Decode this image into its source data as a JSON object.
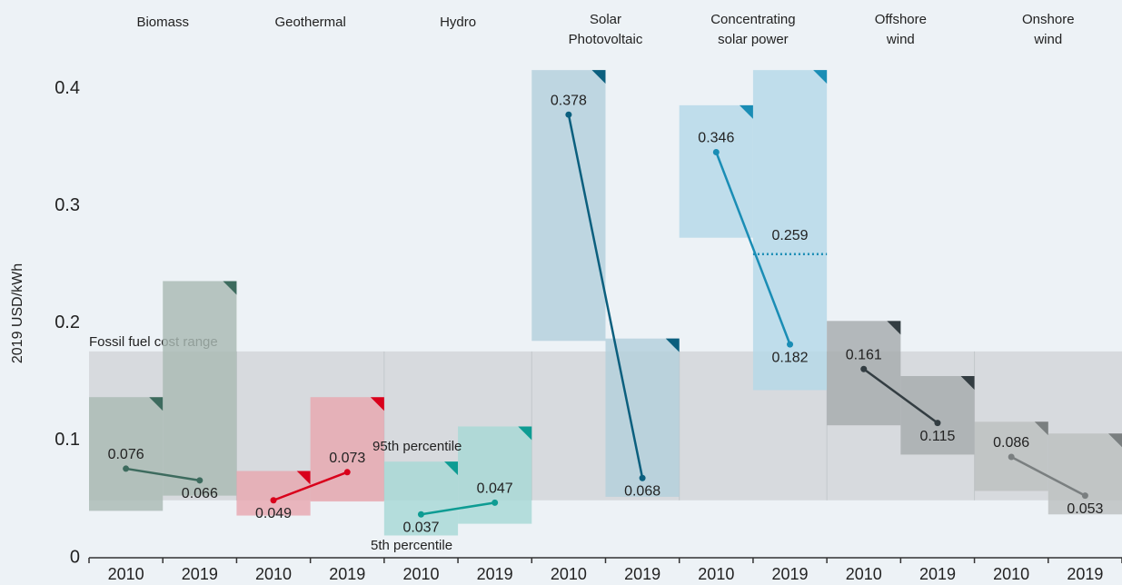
{
  "chart_data": {
    "type": "range",
    "y_label": "2019 USD/kWh",
    "categories": [
      "2010",
      "2019"
    ],
    "ylim": [
      0,
      0.42
    ],
    "yticks": [
      0,
      0.1,
      0.2,
      0.3,
      0.4
    ],
    "fossil_range": {
      "label": "Fossil fuel cost range",
      "low": 0.049,
      "high": 0.176,
      "color": "#d2d6d9"
    },
    "series": [
      {
        "name": [
          "Biomass"
        ],
        "color": "#3d6b5e",
        "box_color": "#a9bab3",
        "low": [
          0.04,
          0.053
        ],
        "high": [
          0.137,
          0.236
        ],
        "values": [
          0.076,
          0.066
        ]
      },
      {
        "name": [
          "Geothermal"
        ],
        "color": "#d9001b",
        "box_color": "#e8a7b0",
        "low": [
          0.036,
          0.048
        ],
        "high": [
          0.074,
          0.137
        ],
        "values": [
          0.049,
          0.073
        ]
      },
      {
        "name": [
          "Hydro"
        ],
        "color": "#0e9c93",
        "box_color": "#a7d8d5",
        "low": [
          0.019,
          0.029
        ],
        "high": [
          0.082,
          0.112
        ],
        "values": [
          0.037,
          0.047
        ]
      },
      {
        "name": [
          "Solar",
          "Photovoltaic"
        ],
        "color": "#0b5f7e",
        "box_color": "#b3cfdc",
        "low": [
          0.185,
          0.052
        ],
        "high": [
          0.416,
          0.187
        ],
        "values": [
          0.378,
          0.068
        ]
      },
      {
        "name": [
          "Concentrating",
          "solar power"
        ],
        "color": "#1a8db5",
        "box_color": "#b5d8e8",
        "low": [
          0.273,
          0.143
        ],
        "high": [
          0.386,
          0.416
        ],
        "values": [
          0.346,
          0.182
        ]
      },
      {
        "name": [
          "Offshore",
          "wind"
        ],
        "color": "#333d42",
        "box_color": "#a6abad",
        "low": [
          0.113,
          0.088
        ],
        "high": [
          0.202,
          0.155
        ],
        "values": [
          0.161,
          0.115
        ]
      },
      {
        "name": [
          "Onshore",
          "wind"
        ],
        "color": "#7a7f80",
        "box_color": "#bcbfc0",
        "low": [
          0.057,
          0.037
        ],
        "high": [
          0.116,
          0.106
        ],
        "values": [
          0.086,
          0.053
        ]
      }
    ],
    "annotations": [
      {
        "text": "0.259",
        "value": 0.259
      },
      {
        "text": "95th percentile"
      },
      {
        "text": "5th percentile"
      }
    ]
  }
}
